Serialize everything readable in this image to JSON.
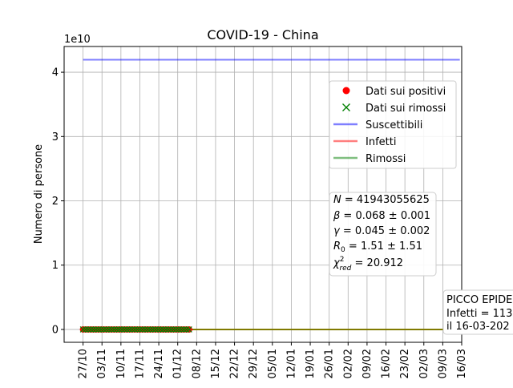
{
  "chart_data": {
    "type": "line",
    "title": "COVID-19 - China",
    "ylabel": "Numero di persone",
    "xlabel": "",
    "y_offset_label": "1e10",
    "y_scale": 10000000000,
    "ylim": [
      -0.2,
      4.4
    ],
    "xlim": [
      -1,
      20
    ],
    "yticks": [
      0,
      1,
      2,
      3,
      4
    ],
    "xtick_labels": [
      "27/10",
      "03/11",
      "10/11",
      "17/11",
      "24/11",
      "01/12",
      "08/12",
      "15/12",
      "22/12",
      "29/12",
      "05/01",
      "12/01",
      "19/01",
      "26/01",
      "02/02",
      "09/02",
      "16/02",
      "23/02",
      "02/03",
      "09/03",
      "16/03"
    ],
    "grid": true,
    "legend_position": "right",
    "series": [
      {
        "name": "Dati sui positivi",
        "kind": "marker",
        "marker": "circle",
        "color": "#ff0000",
        "x_range": [
          0,
          5.6
        ],
        "value": 0
      },
      {
        "name": "Dati sui rimossi",
        "kind": "marker",
        "marker": "x",
        "color": "#008000",
        "x_range": [
          0,
          5.6
        ],
        "value": 0
      },
      {
        "name": "Suscettibili",
        "kind": "line",
        "color": "#0000ff",
        "x_range": [
          0,
          19.9
        ],
        "value": 4.194
      },
      {
        "name": "Infetti",
        "kind": "line",
        "color": "#ff0000",
        "x_range": [
          0,
          19.9
        ],
        "value": 0
      },
      {
        "name": "Rimossi",
        "kind": "line",
        "color": "#008000",
        "x_range": [
          0,
          19.9
        ],
        "value": 0
      }
    ],
    "params_lines": [
      "N = 41943055625",
      "β = 0.068 ± 0.001",
      "γ = 0.045 ± 0.002",
      "R0 = 1.51 ± 1.51",
      "χ2red = 20.912"
    ],
    "peak_annotation": [
      "PICCO EPIDE",
      "Infetti = 113",
      "il 16-03-202"
    ]
  }
}
